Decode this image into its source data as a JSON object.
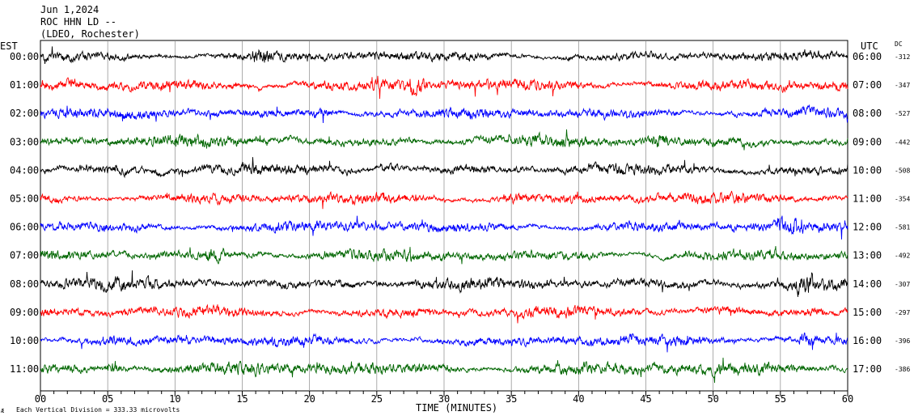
{
  "header": {
    "date": "Jun 1,2024",
    "station": "ROC HHN LD --",
    "network": "(LDEO, Rochester)"
  },
  "left_tz": "EST",
  "right_tz": "UTC",
  "dc_header": "DC",
  "footer": {
    "logo_text": "Æ",
    "scale_note": "Each Vertical Division =  333.33 microvolts"
  },
  "colors": {
    "black": "#000000",
    "red": "#ff0000",
    "blue": "#0000ff",
    "green": "#006600"
  },
  "chart_data": {
    "type": "line",
    "xlabel": "TIME (MINUTES)",
    "xlim": [
      0,
      60
    ],
    "x_ticks": [
      "00",
      "05",
      "10",
      "15",
      "20",
      "25",
      "30",
      "35",
      "40",
      "45",
      "50",
      "55",
      "60"
    ],
    "traces": [
      {
        "est": "00:00",
        "utc": "06:00",
        "dc": "-312",
        "color": "#000000",
        "noise": 0.8,
        "event_min": 16.5
      },
      {
        "est": "01:00",
        "utc": "07:00",
        "dc": "-347",
        "color": "#ff0000",
        "noise": 1.0,
        "event_min": 28.0
      },
      {
        "est": "02:00",
        "utc": "08:00",
        "dc": "-527",
        "color": "#0000ff",
        "noise": 0.9,
        "event_min": 21.0
      },
      {
        "est": "03:00",
        "utc": "09:00",
        "dc": "-442",
        "color": "#006600",
        "noise": 1.0,
        "event_min": 46.0
      },
      {
        "est": "04:00",
        "utc": "10:00",
        "dc": "-508",
        "color": "#000000",
        "noise": 0.9,
        "event_min": 26.0
      },
      {
        "est": "05:00",
        "utc": "11:00",
        "dc": "-354",
        "color": "#ff0000",
        "noise": 0.9,
        "event_min": 35.0
      },
      {
        "est": "06:00",
        "utc": "12:00",
        "dc": "-581",
        "color": "#0000ff",
        "noise": 0.9,
        "event_min": 55.5
      },
      {
        "est": "07:00",
        "utc": "13:00",
        "dc": "-492",
        "color": "#006600",
        "noise": 0.9,
        "event_min": 13.0
      },
      {
        "est": "08:00",
        "utc": "14:00",
        "dc": "-307",
        "color": "#000000",
        "noise": 1.0,
        "event_min": 56.7
      },
      {
        "est": "09:00",
        "utc": "15:00",
        "dc": "-297",
        "color": "#ff0000",
        "noise": 0.9,
        "event_min": 57.5
      },
      {
        "est": "10:00",
        "utc": "16:00",
        "dc": "-396",
        "color": "#0000ff",
        "noise": 0.9,
        "event_min": 57.0
      },
      {
        "est": "11:00",
        "utc": "17:00",
        "dc": "-386",
        "color": "#006600",
        "noise": 1.1,
        "event_min": 5.5
      }
    ]
  }
}
